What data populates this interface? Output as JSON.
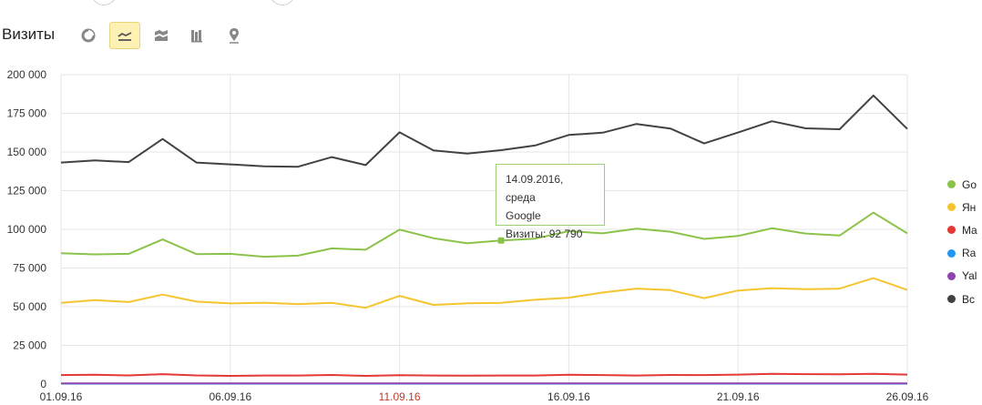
{
  "header": {
    "title": "Визиты"
  },
  "toolbar": {
    "buttons": [
      {
        "icon": "pie-chart-icon",
        "active": false
      },
      {
        "icon": "line-chart-icon",
        "active": true
      },
      {
        "icon": "area-chart-icon",
        "active": false
      },
      {
        "icon": "bar-chart-icon",
        "active": false
      },
      {
        "icon": "map-icon",
        "active": false
      }
    ]
  },
  "legend": {
    "items": [
      {
        "label": "Go",
        "color": "#8bc34a"
      },
      {
        "label": "Ян",
        "color": "#f5c52f"
      },
      {
        "label": "Ma",
        "color": "#e53935"
      },
      {
        "label": "Ra",
        "color": "#2196f3"
      },
      {
        "label": "Yal",
        "color": "#8e44ad"
      },
      {
        "label": "Вс",
        "color": "#424242"
      }
    ]
  },
  "tooltip": {
    "date": "14.09.2016, среда",
    "series": "Google",
    "value": "Визиты: 92 790"
  },
  "chart_data": {
    "type": "line",
    "ylim": [
      0,
      200000
    ],
    "yticks": [
      "0",
      "25 000",
      "50 000",
      "75 000",
      "100 000",
      "125 000",
      "150 000",
      "175 000",
      "200 000"
    ],
    "xticks": [
      {
        "label": "01.09.16",
        "index": 0,
        "weekend": false
      },
      {
        "label": "06.09.16",
        "index": 5,
        "weekend": false
      },
      {
        "label": "11.09.16",
        "index": 10,
        "weekend": true
      },
      {
        "label": "16.09.16",
        "index": 15,
        "weekend": false
      },
      {
        "label": "21.09.16",
        "index": 20,
        "weekend": false
      },
      {
        "label": "26.09.16",
        "index": 25,
        "weekend": false
      }
    ],
    "grid": true,
    "highlight": {
      "series": 0,
      "index": 13
    },
    "series": [
      {
        "color": "#8bc34a",
        "values": [
          84500,
          83800,
          84200,
          93500,
          84000,
          84200,
          82300,
          83000,
          87700,
          86800,
          99800,
          94300,
          91000,
          92790,
          94000,
          98800,
          97400,
          100500,
          98500,
          93800,
          95700,
          100700,
          97300,
          96000,
          110800,
          97400
        ]
      },
      {
        "color": "#f5c52f",
        "values": [
          52500,
          54300,
          53000,
          57800,
          53300,
          52100,
          52600,
          51700,
          52500,
          49300,
          57000,
          51200,
          52200,
          52500,
          54500,
          55800,
          59200,
          61700,
          60700,
          55500,
          60500,
          62000,
          61300,
          61700,
          68500,
          60800
        ]
      },
      {
        "color": "#e53935",
        "values": [
          5800,
          6000,
          5600,
          6400,
          5600,
          5300,
          5500,
          5500,
          5900,
          5300,
          5700,
          5500,
          5400,
          5500,
          5500,
          6000,
          5800,
          5500,
          5900,
          5800,
          6100,
          6600,
          6400,
          6300,
          6600,
          6100
        ]
      },
      {
        "color": "#2196f3",
        "values": [
          300,
          300,
          300,
          300,
          300,
          300,
          300,
          300,
          300,
          300,
          300,
          300,
          300,
          300,
          300,
          300,
          300,
          300,
          300,
          300,
          300,
          300,
          300,
          300,
          300,
          300
        ]
      },
      {
        "color": "#8e44ad",
        "values": [
          400,
          400,
          400,
          400,
          400,
          400,
          400,
          400,
          400,
          400,
          400,
          400,
          400,
          400,
          400,
          400,
          400,
          400,
          400,
          400,
          400,
          400,
          400,
          400,
          400,
          400
        ]
      },
      {
        "color": "#424242",
        "values": [
          143200,
          144500,
          143500,
          158400,
          143200,
          142000,
          140700,
          140500,
          146700,
          141500,
          162700,
          151000,
          149000,
          151200,
          154200,
          161000,
          162500,
          168100,
          165200,
          155500,
          162600,
          169900,
          165300,
          164700,
          186500,
          164900
        ]
      }
    ]
  }
}
